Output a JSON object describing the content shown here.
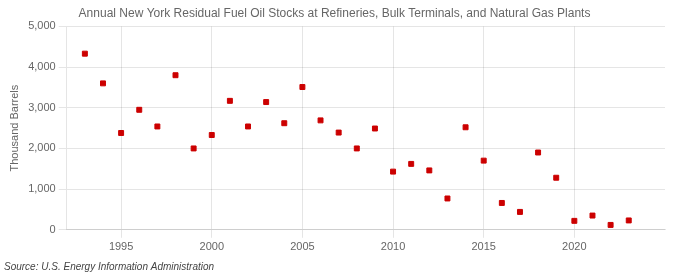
{
  "chart_data": {
    "type": "scatter",
    "title": "Annual New York Residual Fuel Oil Stocks at Refineries, Bulk Terminals, and Natural Gas Plants",
    "ylabel": "Thousand Barrels",
    "source": "Source: U.S. Energy Information Administration",
    "x": [
      1993,
      1994,
      1995,
      1996,
      1997,
      1998,
      1999,
      2000,
      2001,
      2002,
      2003,
      2004,
      2005,
      2006,
      2007,
      2008,
      2009,
      2010,
      2011,
      2012,
      2013,
      2014,
      2015,
      2016,
      2017,
      2018,
      2019,
      2020,
      2021,
      2022,
      2023
    ],
    "values": [
      4330,
      3600,
      2380,
      2950,
      2540,
      3800,
      2000,
      2330,
      3170,
      2540,
      3140,
      2620,
      3510,
      2690,
      2390,
      2000,
      2490,
      1430,
      1620,
      1460,
      770,
      2520,
      1700,
      660,
      440,
      1900,
      1280,
      220,
      350,
      120,
      230
    ],
    "color": "#cc0000",
    "marker": "square",
    "xlim": [
      1992,
      2025
    ],
    "xticks": [
      1995,
      2000,
      2005,
      2010,
      2015,
      2020
    ],
    "ylim": [
      0,
      5000
    ],
    "yticks": [
      0,
      {
        "value": 1000,
        "label": "1,000"
      },
      {
        "value": 2000,
        "label": "2,000"
      },
      {
        "value": 3000,
        "label": "3,000"
      },
      {
        "value": 4000,
        "label": "4,000"
      },
      {
        "value": 5000,
        "label": "5,000"
      }
    ],
    "grid": true
  }
}
